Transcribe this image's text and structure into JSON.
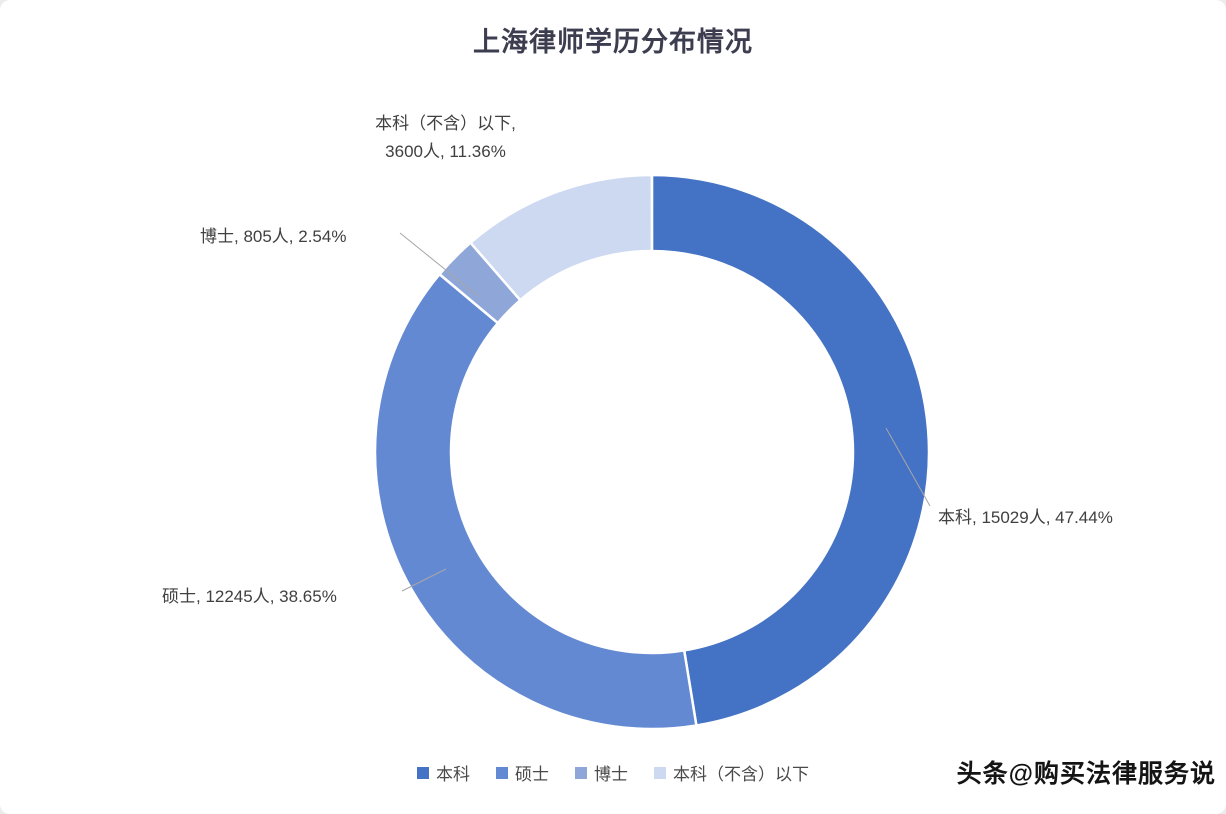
{
  "chart_data": {
    "type": "pie",
    "donut": true,
    "title": "上海律师学历分布情况",
    "categories": [
      "本科",
      "硕士",
      "博士",
      "本科（不含）以下"
    ],
    "values": [
      15029,
      12245,
      805,
      3600
    ],
    "percents": [
      47.44,
      38.65,
      2.54,
      11.36
    ],
    "unit": "人",
    "start_angle_deg": 0,
    "legend_position": "bottom",
    "segments": [
      {
        "label": "本科",
        "count": 15029,
        "percent": 47.44,
        "color": "#4472c4",
        "callout": "本科, 15029人, 47.44%"
      },
      {
        "label": "硕士",
        "count": 12245,
        "percent": 38.65,
        "color": "#6489d3",
        "callout": "硕士, 12245人, 38.65%"
      },
      {
        "label": "博士",
        "count": 805,
        "percent": 2.54,
        "color": "#8fa6d8",
        "callout": "博士, 805人, 2.54%"
      },
      {
        "label": "本科（不含）以下",
        "count": 3600,
        "percent": 11.36,
        "color": "#ccd9f1",
        "callout_line1": "本科（不含）以下,",
        "callout_line2": "3600人, 11.36%"
      }
    ]
  },
  "watermark": {
    "text": "头条@购买法律服务说"
  }
}
